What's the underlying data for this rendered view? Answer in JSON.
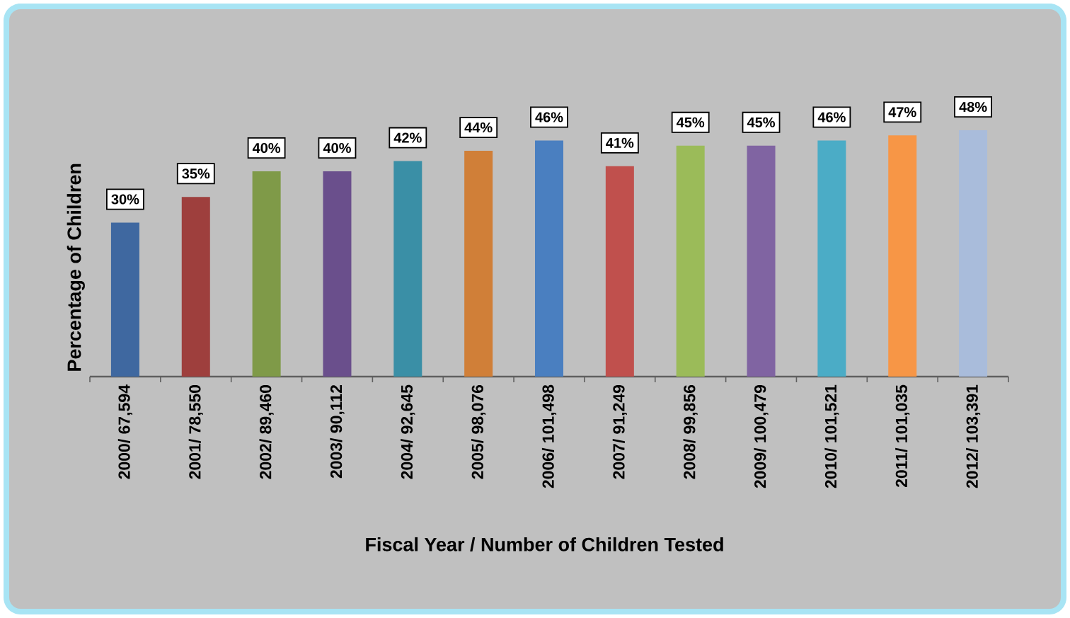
{
  "chart_data": {
    "type": "bar",
    "xlabel": "Fiscal Year / Number of Children Tested",
    "ylabel": "Percentage of Children",
    "categories": [
      "2000/ 67,594",
      "2001/ 78,550",
      "2002/ 89,460",
      "2003/ 90,112",
      "2004/ 92,645",
      "2005/ 98,076",
      "2006/ 101,498",
      "2007/ 91,249",
      "2008/ 99,856",
      "2009/ 100,479",
      "2010/ 101,521",
      "2011/ 101,035",
      "2012/ 103,391"
    ],
    "values": [
      30,
      35,
      40,
      40,
      42,
      44,
      46,
      41,
      45,
      45,
      46,
      47,
      48
    ],
    "colors": [
      "#3f68a0",
      "#9e3f3d",
      "#7f9a48",
      "#6a4f8c",
      "#3a8fa6",
      "#d07f38",
      "#4a7fc0",
      "#c0504d",
      "#9bbb59",
      "#8064a2",
      "#4bacc6",
      "#f79646",
      "#a9bcdb"
    ],
    "value_labels": [
      "30%",
      "35%",
      "40%",
      "40%",
      "42%",
      "44%",
      "46%",
      "41%",
      "45%",
      "45%",
      "46%",
      "47%",
      "48%"
    ],
    "tick_labels": "x"
  }
}
